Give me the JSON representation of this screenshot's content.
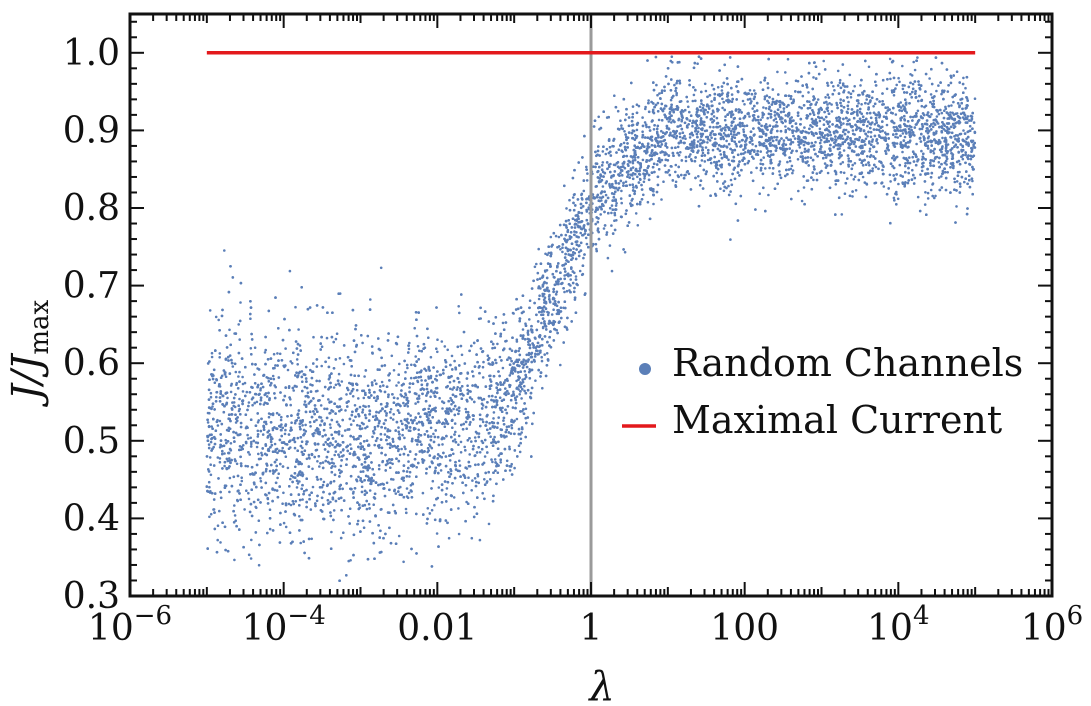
{
  "chart_data": {
    "type": "scatter",
    "title": "",
    "xlabel": "λ",
    "ylabel": {
      "main": "J/J",
      "sub": "max"
    },
    "x_scale": "log",
    "xlim": [
      1e-06,
      1000000.0
    ],
    "ylim": [
      0.3,
      1.05
    ],
    "x_ticks": [
      {
        "value": 1e-06,
        "base": "10",
        "exp": "−6"
      },
      {
        "value": 0.0001,
        "base": "10",
        "exp": "−4"
      },
      {
        "value": 0.01,
        "base": "0.01",
        "exp": ""
      },
      {
        "value": 1,
        "base": "1",
        "exp": ""
      },
      {
        "value": 100,
        "base": "100",
        "exp": ""
      },
      {
        "value": 10000.0,
        "base": "10",
        "exp": "4"
      },
      {
        "value": 1000000.0,
        "base": "10",
        "exp": "6"
      }
    ],
    "y_ticks": [
      "0.3",
      "0.4",
      "0.5",
      "0.6",
      "0.7",
      "0.8",
      "0.9",
      "1.0"
    ],
    "vertical_line": {
      "x": 1,
      "color": "#9a9a9a"
    },
    "legend": {
      "placement": "right-center"
    },
    "series": [
      {
        "name": "Random Channels",
        "kind": "scatter",
        "color": "#5b7fb8",
        "x_range": [
          1e-05,
          100000.0
        ],
        "trend": [
          {
            "x": 1e-05,
            "mean": 0.52,
            "spread": 0.07
          },
          {
            "x": 0.001,
            "mean": 0.5,
            "spread": 0.07
          },
          {
            "x": 0.03,
            "mean": 0.52,
            "spread": 0.06
          },
          {
            "x": 0.1,
            "mean": 0.56,
            "spread": 0.05
          },
          {
            "x": 0.3,
            "mean": 0.68,
            "spread": 0.04
          },
          {
            "x": 1,
            "mean": 0.81,
            "spread": 0.04
          },
          {
            "x": 10,
            "mean": 0.9,
            "spread": 0.035
          },
          {
            "x": 1000.0,
            "mean": 0.9,
            "spread": 0.035
          },
          {
            "x": 100000.0,
            "mean": 0.89,
            "spread": 0.04
          }
        ]
      },
      {
        "name": "Maximal Current",
        "kind": "line",
        "color": "#e3191c",
        "x": [
          1e-05,
          100000.0
        ],
        "y": [
          1.0,
          1.0
        ]
      }
    ]
  }
}
